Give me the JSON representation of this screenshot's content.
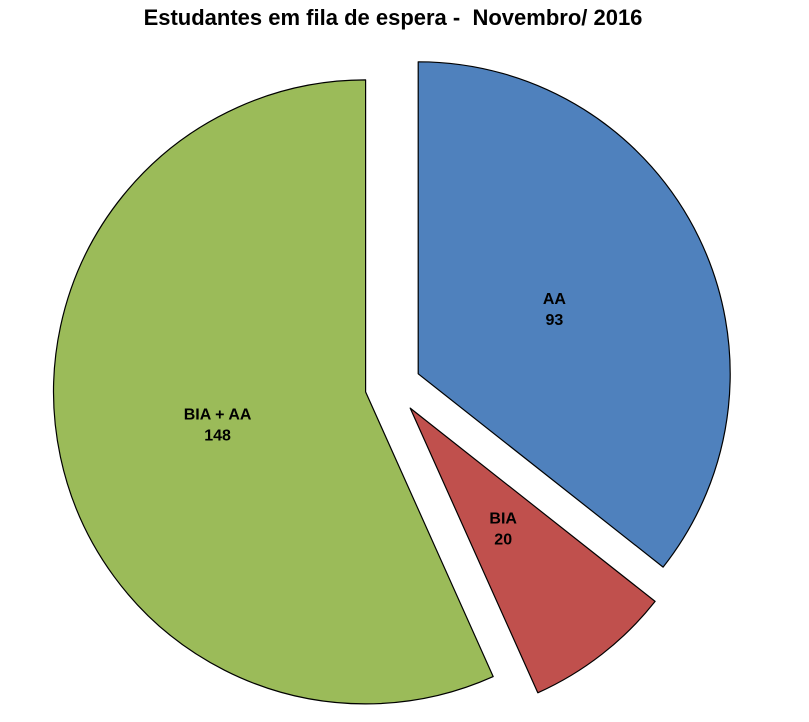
{
  "chart_data": {
    "type": "pie",
    "title": "Estudantes em fila de espera -  Novembro/ 2016",
    "slices": [
      {
        "label": "AA",
        "value": 93,
        "color": "#4F81BD"
      },
      {
        "label": "BIA",
        "value": 20,
        "color": "#C0504D"
      },
      {
        "label": "BIA + AA",
        "value": 148,
        "color": "#9BBB59"
      }
    ],
    "total": 261,
    "start_angle_deg": 0,
    "direction": "clockwise",
    "exploded": true,
    "legend": "none",
    "data_labels": "category-and-value-inside",
    "stroke_color": "#000000",
    "label_color": "#000000",
    "background_color": "#FFFFFF"
  }
}
